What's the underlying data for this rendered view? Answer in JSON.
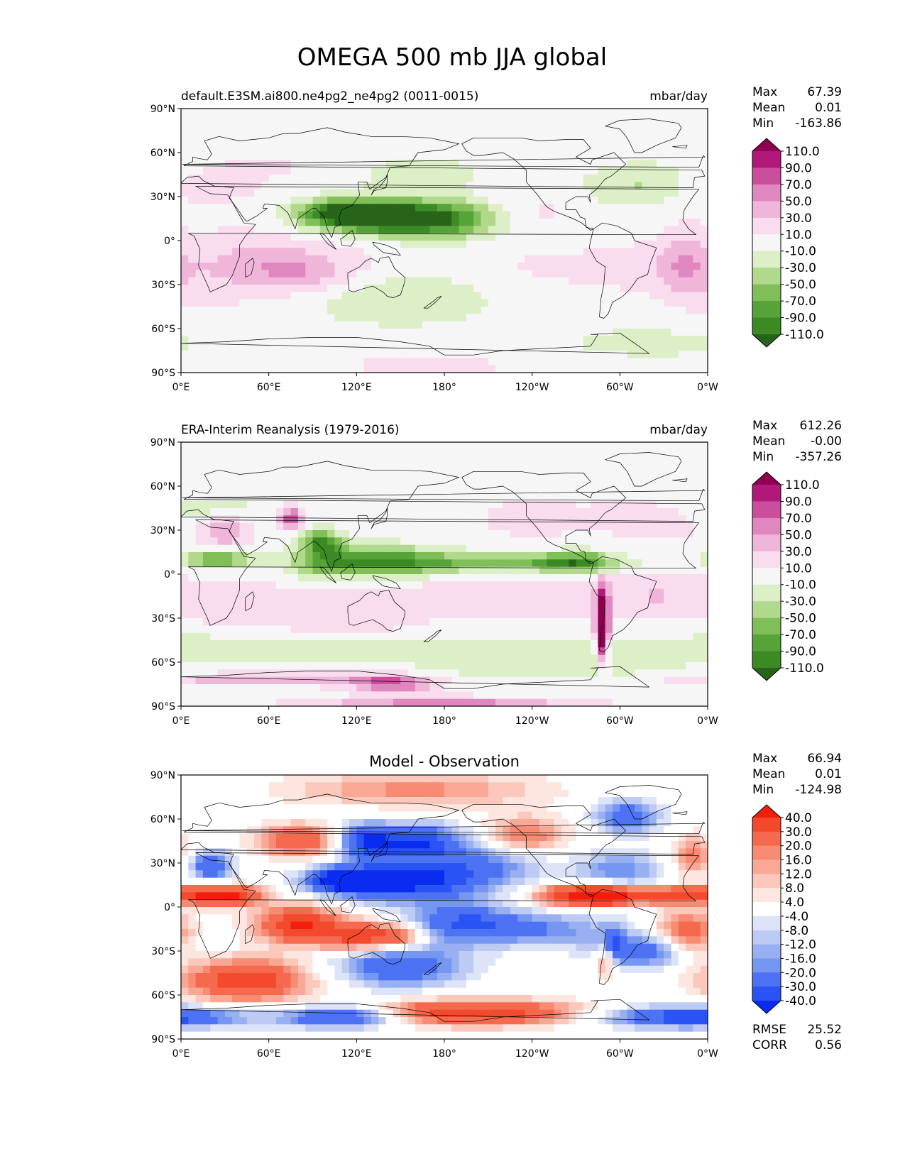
{
  "title": "OMEGA 500 mb JJA global",
  "axes": {
    "lat_ticks": [
      "90°N",
      "60°N",
      "30°N",
      "0°",
      "30°S",
      "60°S",
      "90°S"
    ],
    "lon_ticks": [
      "0°E",
      "60°E",
      "120°E",
      "180°",
      "120°W",
      "60°W",
      "0°W"
    ]
  },
  "colors": {
    "omega_levels": [
      "#276419",
      "#3b8a24",
      "#56a33a",
      "#80be58",
      "#b0d98b",
      "#dcefc6",
      "#f6f6f6",
      "#f9dcee",
      "#f0b6da",
      "#e187c0",
      "#cb4e9c",
      "#b0187a",
      "#8e0152"
    ],
    "diff_levels": [
      "#0a2bf0",
      "#2a53f4",
      "#4d72f3",
      "#7596f1",
      "#98b0f2",
      "#bccaf4",
      "#dde4fa",
      "#ffffff",
      "#fde6e0",
      "#fbc8bb",
      "#f9a895",
      "#f78b73",
      "#f56a4f",
      "#f3492c",
      "#f01e0a"
    ]
  },
  "chart_data": [
    {
      "type": "heatmap",
      "name": "model",
      "title_left": "default.E3SM.ai800.ne4pg2_ne4pg2 (0011-0015)",
      "title_center": "",
      "units": "mbar/day",
      "xlim": [
        0,
        360
      ],
      "ylim": [
        -90,
        90
      ],
      "colorbar_levels": [
        "110.0",
        "90.0",
        "70.0",
        "50.0",
        "30.0",
        "10.0",
        "-10.0",
        "-30.0",
        "-50.0",
        "-70.0",
        "-90.0",
        "-110.0"
      ],
      "stats": [
        {
          "label": "Max",
          "value": "67.39"
        },
        {
          "label": "Mean",
          "value": "0.01"
        },
        {
          "label": "Min",
          "value": "-163.86"
        }
      ],
      "extra_stats": []
    },
    {
      "type": "heatmap",
      "name": "observation",
      "title_left": "ERA-Interim Reanalysis (1979-2016)",
      "title_center": "",
      "units": "mbar/day",
      "xlim": [
        0,
        360
      ],
      "ylim": [
        -90,
        90
      ],
      "colorbar_levels": [
        "110.0",
        "90.0",
        "70.0",
        "50.0",
        "30.0",
        "10.0",
        "-10.0",
        "-30.0",
        "-50.0",
        "-70.0",
        "-90.0",
        "-110.0"
      ],
      "stats": [
        {
          "label": "Max",
          "value": "612.26"
        },
        {
          "label": "Mean",
          "value": "-0.00"
        },
        {
          "label": "Min",
          "value": "-357.26"
        }
      ],
      "extra_stats": []
    },
    {
      "type": "heatmap",
      "name": "difference",
      "title_left": "",
      "title_center": "Model - Observation",
      "units": "",
      "xlim": [
        0,
        360
      ],
      "ylim": [
        -90,
        90
      ],
      "colorbar_levels": [
        "40.0",
        "30.0",
        "20.0",
        "16.0",
        "12.0",
        "8.0",
        "4.0",
        "-4.0",
        "-8.0",
        "-12.0",
        "-16.0",
        "-20.0",
        "-30.0",
        "-40.0"
      ],
      "stats": [
        {
          "label": "Max",
          "value": "66.94"
        },
        {
          "label": "Mean",
          "value": "0.01"
        },
        {
          "label": "Min",
          "value": "-124.98"
        }
      ],
      "extra_stats": [
        {
          "label": "RMSE",
          "value": "25.52"
        },
        {
          "label": "CORR",
          "value": "0.56"
        }
      ]
    }
  ]
}
